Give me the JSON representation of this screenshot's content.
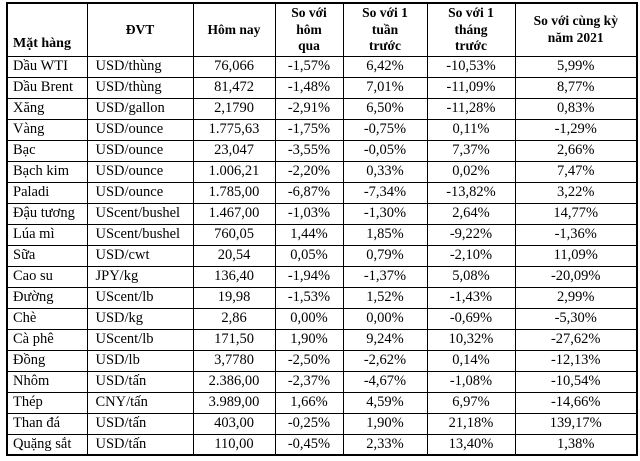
{
  "colors": {
    "text": "#000000",
    "border": "#000000",
    "background": "#ffffff"
  },
  "table": {
    "columns": [
      {
        "key": "commodity",
        "label": "Mặt hàng"
      },
      {
        "key": "unit",
        "label": "ĐVT"
      },
      {
        "key": "today",
        "label": "Hôm nay"
      },
      {
        "key": "vs_yesterday",
        "label": "So với\nhôm\nqua"
      },
      {
        "key": "vs_week",
        "label": "So với 1\ntuần\ntrước"
      },
      {
        "key": "vs_month",
        "label": "So với 1\ntháng\ntrước"
      },
      {
        "key": "vs_2021",
        "label": "So với cùng kỳ\nnăm 2021"
      }
    ],
    "rows": [
      [
        "Dầu WTI",
        "USD/thùng",
        "76,066",
        "-1,57%",
        "6,42%",
        "-10,53%",
        "5,99%"
      ],
      [
        "Dầu Brent",
        "USD/thùng",
        "81,472",
        "-1,48%",
        "7,01%",
        "-11,09%",
        "8,77%"
      ],
      [
        "Xăng",
        "USD/gallon",
        "2,1790",
        "-2,91%",
        "6,50%",
        "-11,28%",
        "0,83%"
      ],
      [
        "Vàng",
        "USD/ounce",
        "1.775,63",
        "-1,75%",
        "-0,75%",
        "0,11%",
        "-1,29%"
      ],
      [
        "Bạc",
        "USD/ounce",
        "23,047",
        "-3,55%",
        "-0,05%",
        "7,37%",
        "2,66%"
      ],
      [
        "Bạch kim",
        "USD/ounce",
        "1.006,21",
        "-2,20%",
        "0,33%",
        "0,02%",
        "7,47%"
      ],
      [
        "Paladi",
        "USD/ounce",
        "1.785,00",
        "-6,87%",
        "-7,34%",
        "-13,82%",
        "3,22%"
      ],
      [
        "Đậu tương",
        "UScent/bushel",
        "1.467,00",
        "-1,03%",
        "-1,30%",
        "2,64%",
        "14,77%"
      ],
      [
        "Lúa mì",
        "UScent/bushel",
        "760,05",
        "1,44%",
        "1,85%",
        "-9,22%",
        "-1,36%"
      ],
      [
        "Sữa",
        "USD/cwt",
        "20,54",
        "0,05%",
        "0,79%",
        "-2,10%",
        "11,09%"
      ],
      [
        "Cao su",
        "JPY/kg",
        "136,40",
        "-1,94%",
        "-1,37%",
        "5,08%",
        "-20,09%"
      ],
      [
        "Đường",
        "UScent/lb",
        "19,98",
        "-1,53%",
        "1,52%",
        "-1,43%",
        "2,99%"
      ],
      [
        "Chè",
        "USD/kg",
        "2,86",
        "0,00%",
        "0,00%",
        "-0,69%",
        "-5,30%"
      ],
      [
        "Cà phê",
        "UScent/lb",
        "171,50",
        "1,90%",
        "9,24%",
        "10,32%",
        "-27,62%"
      ],
      [
        "Đồng",
        "USD/lb",
        "3,7780",
        "-2,50%",
        "-2,62%",
        "0,14%",
        "-12,13%"
      ],
      [
        "Nhôm",
        "USD/tấn",
        "2.386,00",
        "-2,37%",
        "-4,67%",
        "-1,08%",
        "-10,54%"
      ],
      [
        "Thép",
        "CNY/tấn",
        "3.989,00",
        "1,66%",
        "4,59%",
        "6,97%",
        "-14,66%"
      ],
      [
        "Than đá",
        "USD/tấn",
        "403,00",
        "-0,25%",
        "1,90%",
        "21,18%",
        "139,17%"
      ],
      [
        "Quặng sắt",
        "USD/tấn",
        "110,00",
        "-0,45%",
        "2,33%",
        "13,40%",
        "1,38%"
      ]
    ]
  }
}
